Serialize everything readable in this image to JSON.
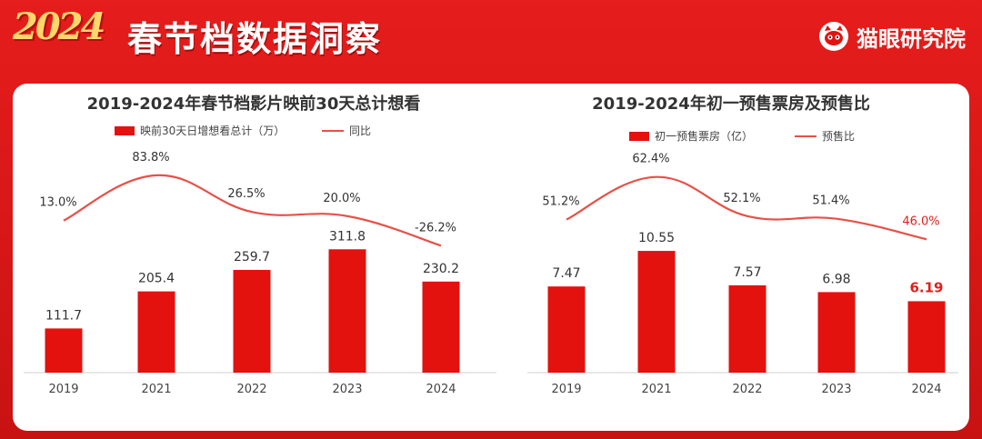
{
  "banner": {
    "year_logo": "2024",
    "title": "春节档数据洞察",
    "brand": "猫眼研究院"
  },
  "colors": {
    "bar": "#e3120f",
    "line": "#e65148",
    "highlight": "#e0201c"
  },
  "chart_data": [
    {
      "type": "bar",
      "title": "2019-2024年春节档影片映前30天总计想看",
      "categories": [
        "2019",
        "2021",
        "2022",
        "2023",
        "2024"
      ],
      "series": [
        {
          "name": "映前30天日增想看总计（万）",
          "kind": "bar",
          "values": [
            111.7,
            205.4,
            259.7,
            311.8,
            230.2
          ],
          "labels": [
            "111.7",
            "205.4",
            "259.7",
            "311.8",
            "230.2"
          ]
        },
        {
          "name": "同比",
          "kind": "line",
          "values": [
            13.0,
            83.8,
            26.5,
            20.0,
            -26.2
          ],
          "labels": [
            "13.0%",
            "83.8%",
            "26.5%",
            "20.0%",
            "-26.2%"
          ]
        }
      ],
      "bar_range": [
        0,
        340
      ],
      "line_range": [
        -40,
        85
      ],
      "highlight_index": null
    },
    {
      "type": "bar",
      "title": "2019-2024年初一预售票房及预售比",
      "categories": [
        "2019",
        "2021",
        "2022",
        "2023",
        "2024"
      ],
      "series": [
        {
          "name": "初一预售票房（亿）",
          "kind": "bar",
          "values": [
            7.47,
            10.55,
            7.57,
            6.98,
            6.19
          ],
          "labels": [
            "7.47",
            "10.55",
            "7.57",
            "6.98",
            "6.19"
          ]
        },
        {
          "name": "预售比",
          "kind": "line",
          "values": [
            51.2,
            62.4,
            52.1,
            51.4,
            46.0
          ],
          "labels": [
            "51.2%",
            "62.4%",
            "52.1%",
            "51.4%",
            "46.0%"
          ]
        }
      ],
      "bar_range": [
        0,
        11.5
      ],
      "line_range": [
        20,
        64
      ],
      "highlight_index": 4
    }
  ]
}
